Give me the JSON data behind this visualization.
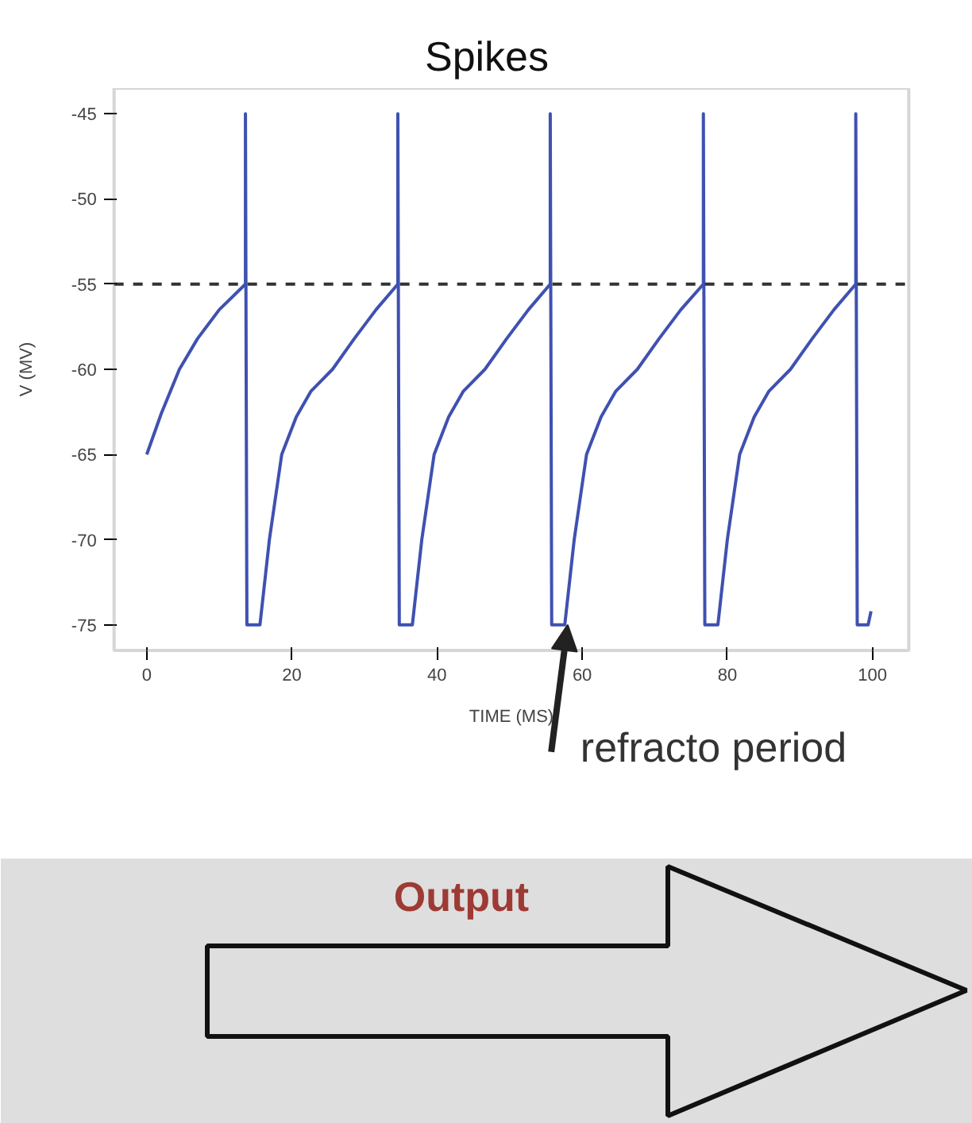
{
  "chart_data": {
    "type": "line",
    "title": "Spikes",
    "xlabel": "TIME (MS)",
    "ylabel": "V (MV)",
    "x": [
      0,
      2,
      4.5,
      7,
      10,
      13.6,
      13.6,
      13.8,
      15.6,
      16.9,
      18.6,
      20.6,
      22.6,
      25.6,
      28.6,
      31.6,
      34.6,
      34.6,
      34.8,
      36.6,
      37.9,
      39.6,
      41.6,
      43.6,
      46.6,
      49.6,
      52.6,
      55.6,
      55.6,
      55.8,
      57.6,
      58.9,
      60.6,
      62.6,
      64.6,
      67.6,
      70.6,
      73.6,
      76.7,
      76.7,
      76.9,
      78.7,
      80,
      81.7,
      83.7,
      85.7,
      88.7,
      91.7,
      94.7,
      97.7,
      97.7,
      97.9,
      99.4,
      99.8
    ],
    "series": [
      {
        "color": "#3f51b0",
        "values": [
          -65,
          -62.6,
          -60,
          -58.2,
          -56.5,
          -55,
          -45,
          -75,
          -75,
          -70,
          -65,
          -62.8,
          -61.3,
          -60,
          -58.2,
          -56.5,
          -55,
          -45,
          -75,
          -75,
          -70,
          -65,
          -62.8,
          -61.3,
          -60,
          -58.2,
          -56.5,
          -55,
          -45,
          -75,
          -75,
          -70,
          -65,
          -62.8,
          -61.3,
          -60,
          -58.2,
          -56.5,
          -55,
          -45,
          -75,
          -75,
          -70,
          -65,
          -62.8,
          -61.3,
          -60,
          -58.2,
          -56.5,
          -55,
          -45,
          -75,
          -75,
          -74.2
        ]
      }
    ],
    "xlim": [
      -4.5,
      105
    ],
    "ylim": [
      -76.5,
      -43.5
    ],
    "xticks": [
      0,
      20,
      40,
      60,
      80,
      100
    ],
    "yticks": [
      -45,
      -50,
      -55,
      -60,
      -65,
      -70,
      -75
    ],
    "ref_lines": [
      {
        "axis": "y",
        "value": -55,
        "color": "#333333",
        "line_style": "dashed"
      }
    ],
    "grid": false,
    "annotations": [
      {
        "text": "refracto period",
        "x": 58,
        "y": -75
      },
      "Output"
    ]
  }
}
